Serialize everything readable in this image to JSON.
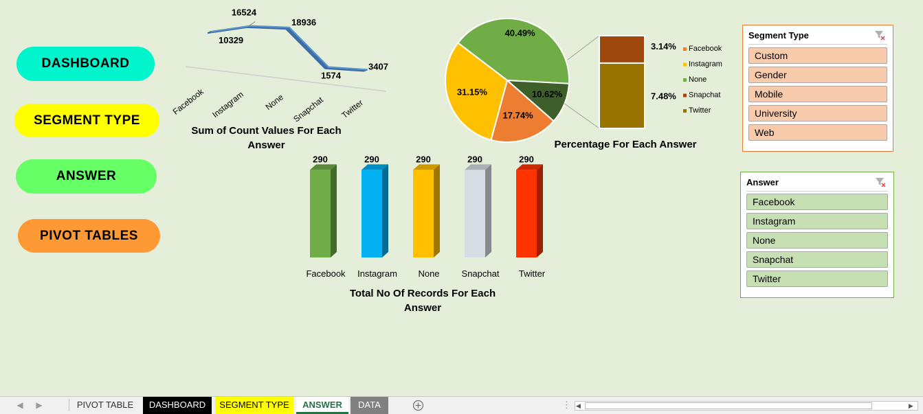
{
  "nav": {
    "dashboard": "DASHBOARD",
    "segment_type": "SEGMENT TYPE",
    "answer": "ANSWER",
    "pivot_tables": "PIVOT TABLES"
  },
  "line_chart": {
    "title_line1": "Sum of Count Values For Each",
    "title_line2": "Answer"
  },
  "pie_chart": {
    "title": "Percentage For Each Answer",
    "bar_of_pie_labels": [
      "3.14%",
      "7.48%"
    ],
    "legend": [
      {
        "label": "Facebook",
        "color": "#ed7d31"
      },
      {
        "label": "Instagram",
        "color": "#ffc000"
      },
      {
        "label": "None",
        "color": "#70ad47"
      },
      {
        "label": "Snapchat",
        "color": "#9e480e"
      },
      {
        "label": "Twitter",
        "color": "#997300"
      }
    ]
  },
  "bar_chart": {
    "title_line1": "Total No Of Records For Each",
    "title_line2": "Answer"
  },
  "chart_data": [
    {
      "type": "line",
      "categories": [
        "Facebook",
        "Instagram",
        "None",
        "Snapchat",
        "Twitter"
      ],
      "values": [
        10329,
        16524,
        18936,
        1574,
        3407
      ],
      "data_labels": [
        "10329",
        "16524",
        "18936",
        "1574",
        "3407"
      ],
      "title": "Sum of Count Values For Each Answer",
      "color": "#4a7fb5"
    },
    {
      "type": "pie",
      "slices": [
        {
          "label": "40.49%",
          "value": 40.49,
          "color": "#70ad47"
        },
        {
          "label": "10.62%",
          "value": 10.62,
          "color": "#3e5e2a"
        },
        {
          "label": "17.74%",
          "value": 17.74,
          "color": "#ed7d31"
        },
        {
          "label": "31.15%",
          "value": 31.15,
          "color": "#ffc000"
        }
      ],
      "secondary_bar": [
        {
          "label": "3.14%",
          "value": 3.14,
          "color": "#9e480e"
        },
        {
          "label": "7.48%",
          "value": 7.48,
          "color": "#997300"
        }
      ],
      "title": "Percentage For Each Answer",
      "legend_position": "right"
    },
    {
      "type": "bar",
      "categories": [
        "Facebook",
        "Instagram",
        "None",
        "Snapchat",
        "Twitter"
      ],
      "values": [
        290,
        290,
        290,
        290,
        290
      ],
      "data_labels": [
        "290",
        "290",
        "290",
        "290",
        "290"
      ],
      "colors": [
        "#70ad47",
        "#00b0f0",
        "#ffc000",
        "#d6dce4",
        "#ff3300"
      ],
      "title": "Total No Of Records For Each Answer"
    }
  ],
  "slicer_segment": {
    "title": "Segment Type",
    "items": [
      "Custom",
      "Gender",
      "Mobile",
      "University",
      "Web"
    ]
  },
  "slicer_answer": {
    "title": "Answer",
    "items": [
      "Facebook",
      "Instagram",
      "None",
      "Snapchat",
      "Twitter"
    ]
  },
  "tabs": {
    "pivot_table": "PIVOT TABLE",
    "dashboard": "DASHBOARD",
    "segment_type": "SEGMENT TYPE",
    "answer": "ANSWER",
    "data": "DATA",
    "colors": {
      "dashboard_bg": "#000000",
      "segment_bg": "#ffff00",
      "answer_active": "#217346",
      "data_bg": "#808080"
    }
  }
}
